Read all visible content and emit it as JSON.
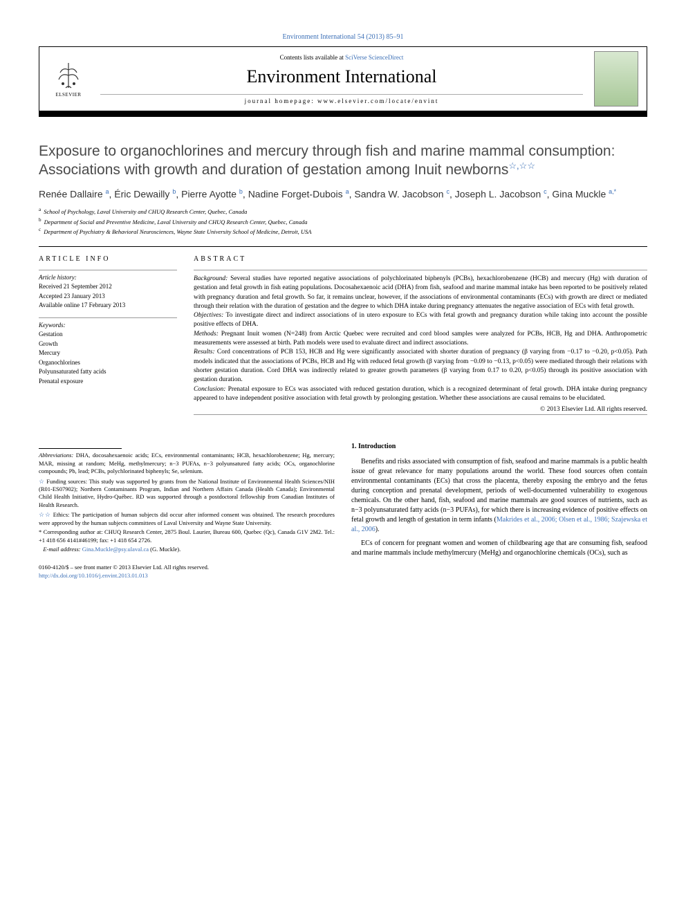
{
  "journal_link": "Environment International 54 (2013) 85–91",
  "header": {
    "contents_prefix": "Contents lists available at ",
    "contents_link": "SciVerse ScienceDirect",
    "journal_name": "Environment International",
    "homepage_prefix": "journal homepage: ",
    "homepage": "www.elsevier.com/locate/envint",
    "publisher": "ELSEVIER"
  },
  "article": {
    "title": "Exposure to organochlorines and mercury through fish and marine mammal consumption: Associations with growth and duration of gestation among Inuit newborns",
    "star_marks": "☆,☆☆",
    "authors_html": "Renée Dallaire <sup>a</sup>, Éric Dewailly <sup>b</sup>, Pierre Ayotte <sup>b</sup>, Nadine Forget-Dubois <sup>a</sup>, Sandra W. Jacobson <sup>c</sup>, Joseph L. Jacobson <sup>c</sup>, Gina Muckle <sup>a,*</sup>",
    "affiliations": [
      {
        "sup": "a",
        "text": "School of Psychology, Laval University and CHUQ Research Center, Quebec, Canada"
      },
      {
        "sup": "b",
        "text": "Department of Social and Preventive Medicine, Laval University and CHUQ Research Center, Quebec, Canada"
      },
      {
        "sup": "c",
        "text": "Department of Psychiatry & Behavioral Neurosciences, Wayne State University School of Medicine, Detroit, USA"
      }
    ]
  },
  "article_info": {
    "heading": "ARTICLE INFO",
    "history_label": "Article history:",
    "history": [
      "Received 21 September 2012",
      "Accepted 23 January 2013",
      "Available online 17 February 2013"
    ],
    "keywords_label": "Keywords:",
    "keywords": [
      "Gestation",
      "Growth",
      "Mercury",
      "Organochlorines",
      "Polyunsaturated fatty acids",
      "Prenatal exposure"
    ]
  },
  "abstract": {
    "heading": "ABSTRACT",
    "background_label": "Background:",
    "background": " Several studies have reported negative associations of polychlorinated biphenyls (PCBs), hexachlorobenzene (HCB) and mercury (Hg) with duration of gestation and fetal growth in fish eating populations. Docosahexaenoic acid (DHA) from fish, seafood and marine mammal intake has been reported to be positively related with pregnancy duration and fetal growth. So far, it remains unclear, however, if the associations of environmental contaminants (ECs) with growth are direct or mediated through their relation with the duration of gestation and the degree to which DHA intake during pregnancy attenuates the negative association of ECs with fetal growth.",
    "objectives_label": "Objectives:",
    "objectives": " To investigate direct and indirect associations of in utero exposure to ECs with fetal growth and pregnancy duration while taking into account the possible positive effects of DHA.",
    "methods_label": "Methods:",
    "methods": " Pregnant Inuit women (N=248) from Arctic Quebec were recruited and cord blood samples were analyzed for PCBs, HCB, Hg and DHA. Anthropometric measurements were assessed at birth. Path models were used to evaluate direct and indirect associations.",
    "results_label": "Results:",
    "results": " Cord concentrations of PCB 153, HCB and Hg were significantly associated with shorter duration of pregnancy (β varying from −0.17 to −0.20, p<0.05). Path models indicated that the associations of PCBs, HCB and Hg with reduced fetal growth (β varying from −0.09 to −0.13, p<0.05) were mediated through their relations with shorter gestation duration. Cord DHA was indirectly related to greater growth parameters (β varying from 0.17 to 0.20, p<0.05) through its positive association with gestation duration.",
    "conclusion_label": "Conclusion:",
    "conclusion": " Prenatal exposure to ECs was associated with reduced gestation duration, which is a recognized determinant of fetal growth. DHA intake during pregnancy appeared to have independent positive association with fetal growth by prolonging gestation. Whether these associations are causal remains to be elucidated.",
    "copyright": "© 2013 Elsevier Ltd. All rights reserved."
  },
  "intro": {
    "heading": "1. Introduction",
    "p1_a": "Benefits and risks associated with consumption of fish, seafood and marine mammals is a public health issue of great relevance for many populations around the world. These food sources often contain environmental contaminants (ECs) that cross the placenta, thereby exposing the embryo and the fetus during conception and prenatal development, periods of well-documented vulnerability to exogenous chemicals. On the other hand, fish, seafood and marine mammals are good sources of nutrients, such as n−3 polyunsaturated fatty acids (n−3 PUFAs), for which there is increasing evidence of positive effects on fetal growth and length of gestation in term infants (",
    "p1_cite": "Makrides et al., 2006; Olsen et al., 1986; Szajewska et al., 2006",
    "p1_b": ").",
    "p2": "ECs of concern for pregnant women and women of childbearing age that are consuming fish, seafood and marine mammals include methylmercury (MeHg) and organochlorine chemicals (OCs), such as"
  },
  "footnotes": {
    "abbrev_label": "Abbreviations:",
    "abbrev": " DHA, docosahexaenoic acids; ECs, environmental contaminants; HCB, hexachlorobenzene; Hg, mercury; MAR, missing at random; MeHg, methylmercury; n−3 PUFAs, n−3 polyunsatured fatty acids; OCs, organochlorine compounds; Pb, lead; PCBs, polychlorinated biphenyls; Se, selenium.",
    "funding_mark": "☆",
    "funding": " Funding sources: This study was supported by grants from the National Institute of Environmental Health Sciences/NIH (R01-ES07902); Northern Contaminants Program, Indian and Northern Affairs Canada (Health Canada); Environmental Child Health Initiative, Hydro-Québec. RD was supported through a postdoctoral fellowship from Canadian Institutes of Health Research.",
    "ethics_mark": "☆☆",
    "ethics": " Ethics: The participation of human subjects did occur after informed consent was obtained. The research procedures were approved by the human subjects committees of Laval University and Wayne State University.",
    "corr_mark": "*",
    "corr": " Corresponding author at: CHUQ Research Center, 2875 Boul. Laurier, Bureau 600, Quebec (Qc), Canada G1V 2M2. Tel.: +1 418 656 4141#46199; fax: +1 418 654 2726.",
    "email_label": "E-mail address:",
    "email": " Gina.Muckle@psy.ulaval.ca",
    "email_who": " (G. Muckle)."
  },
  "footer": {
    "line1": "0160-4120/$ – see front matter © 2013 Elsevier Ltd. All rights reserved.",
    "doi": "http://dx.doi.org/10.1016/j.envint.2013.01.013"
  },
  "colors": {
    "link": "#3b6fb6",
    "text": "#000000",
    "title_gray": "#4a4a4a"
  }
}
